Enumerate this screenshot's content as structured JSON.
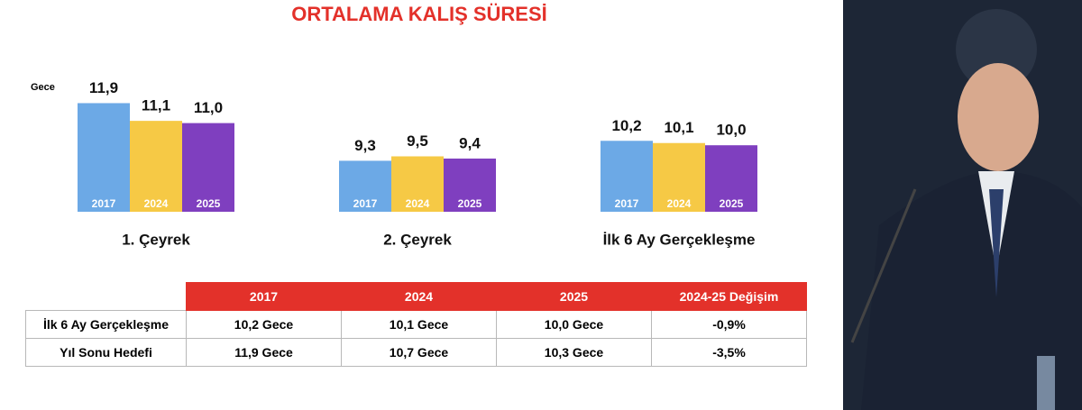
{
  "title": "ORTALAMA KALIŞ SÜRESİ",
  "chart_data": [
    {
      "type": "bar",
      "title": "1. Çeyrek",
      "y_label": "Gece",
      "categories": [
        "2017",
        "2024",
        "2025"
      ],
      "values": [
        11.9,
        11.1,
        11.0
      ],
      "value_labels": [
        "11,9",
        "11,1",
        "11,0"
      ],
      "colors": [
        "#6ca9e6",
        "#f6c945",
        "#7f3fbf"
      ],
      "ylim": [
        7,
        12
      ]
    },
    {
      "type": "bar",
      "title": "2. Çeyrek",
      "categories": [
        "2017",
        "2024",
        "2025"
      ],
      "values": [
        9.3,
        9.5,
        9.4
      ],
      "value_labels": [
        "9,3",
        "9,5",
        "9,4"
      ],
      "colors": [
        "#6ca9e6",
        "#f6c945",
        "#7f3fbf"
      ],
      "ylim": [
        7,
        12
      ]
    },
    {
      "type": "bar",
      "title": "İlk 6 Ay Gerçekleşme",
      "categories": [
        "2017",
        "2024",
        "2025"
      ],
      "values": [
        10.2,
        10.1,
        10.0
      ],
      "value_labels": [
        "10,2",
        "10,1",
        "10,0"
      ],
      "colors": [
        "#6ca9e6",
        "#f6c945",
        "#7f3fbf"
      ],
      "ylim": [
        7,
        12
      ]
    }
  ],
  "table": {
    "header": [
      "2017",
      "2024",
      "2025",
      "2024-25 Değişim"
    ],
    "rows": [
      [
        "İlk 6 Ay Gerçekleşme",
        "10,2 Gece",
        "10,1 Gece",
        "10,0 Gece",
        "-0,9%"
      ],
      [
        "Yıl Sonu Hedefi",
        "11,9 Gece",
        "10,7 Gece",
        "10,3 Gece",
        "-3,5%"
      ]
    ]
  }
}
